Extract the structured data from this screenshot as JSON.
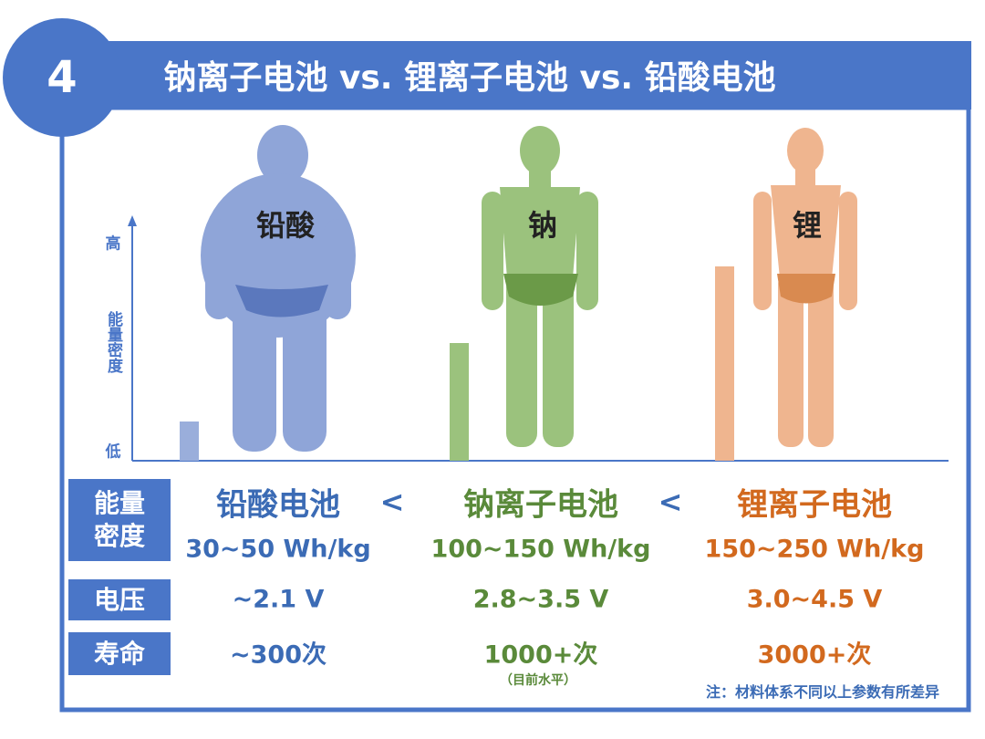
{
  "header": {
    "number": "4",
    "title": "钠离子电池 vs. 锂离子电池 vs. 铅酸电池"
  },
  "axis": {
    "high": "高",
    "label": "能量密度",
    "low": "低"
  },
  "figures": [
    "铅酸",
    "钠",
    "锂"
  ],
  "table": {
    "row_labels": [
      "能量密度",
      "电压",
      "寿命"
    ],
    "separator": "<",
    "columns": [
      {
        "name": "铅酸电池",
        "energy": "30~50 Wh/kg",
        "voltage": "~2.1 V",
        "life": "~300次"
      },
      {
        "name": "钠离子电池",
        "energy": "100~150 Wh/kg",
        "voltage": "2.8~3.5 V",
        "life": "1000+次",
        "life_note": "（目前水平）"
      },
      {
        "name": "锂离子电池",
        "energy": "150~250 Wh/kg",
        "voltage": "3.0~4.5 V",
        "life": "3000+次"
      }
    ]
  },
  "note": "注：材料体系不同以上参数有所差异"
}
